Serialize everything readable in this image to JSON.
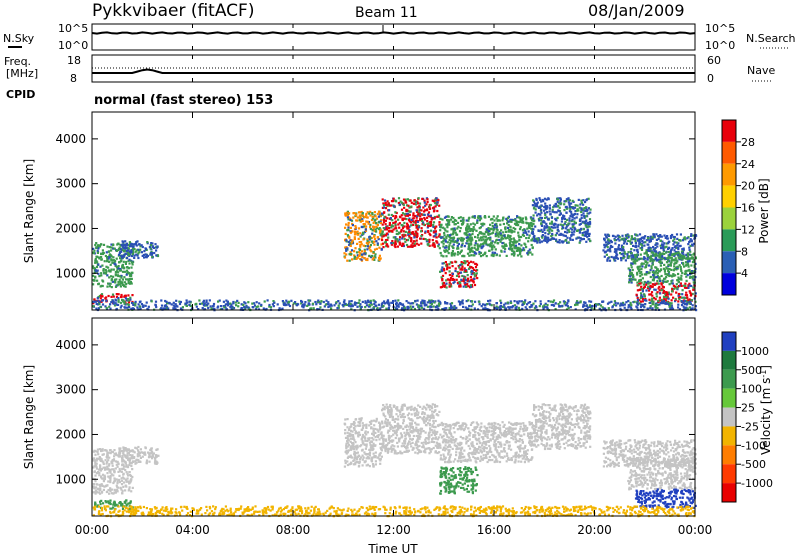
{
  "header": {
    "station": "Pykkvibaer (fitACF)",
    "beam": "Beam 11",
    "date": "08/Jan/2009"
  },
  "noise_panel": {
    "left_label": "N.Sky",
    "right_label": "N.Search",
    "left_ticks": [
      "10^5",
      "10^0"
    ],
    "right_ticks": [
      "10^5",
      "10^0"
    ]
  },
  "freq_panel": {
    "left_label_1": "Freq.",
    "left_label_2": "[MHz]",
    "left_ticks": [
      "18",
      "8"
    ],
    "right_label": "Nave",
    "right_ticks": [
      "60",
      "0"
    ],
    "cpid_label": "CPID",
    "cpid_text": "normal (fast stereo) 153"
  },
  "x_axis": {
    "label": "Time UT",
    "ticks": [
      "00:00",
      "04:00",
      "08:00",
      "12:00",
      "16:00",
      "20:00",
      "00:00"
    ]
  },
  "chart_data": [
    {
      "type": "heatmap",
      "title": "",
      "xlabel": "Time UT",
      "ylabel": "Slant Range [km]",
      "xlim": [
        0,
        24
      ],
      "ylim": [
        180,
        4600
      ],
      "y_ticks": [
        1000,
        2000,
        3000,
        4000
      ],
      "colorbar": {
        "label": "Power [dB]",
        "ticks": [
          "28",
          "24",
          "20",
          "16",
          "12",
          "8",
          "4"
        ],
        "colors": [
          "#e8000b",
          "#ff5a00",
          "#ff9a00",
          "#ffd000",
          "#9bd23c",
          "#2a9b58",
          "#2a5fb5",
          "#0000dd"
        ]
      }
    },
    {
      "type": "heatmap",
      "title": "",
      "xlabel": "Time UT",
      "ylabel": "Slant Range [km]",
      "xlim": [
        0,
        24
      ],
      "ylim": [
        180,
        4600
      ],
      "y_ticks": [
        1000,
        2000,
        3000,
        4000
      ],
      "colorbar": {
        "label": "Velocity [m s-1]",
        "ticks": [
          "1000",
          "500",
          "100",
          "25",
          "-25",
          "-100",
          "-500",
          "-1000"
        ],
        "colors": [
          "#2040c0",
          "#1e7a3e",
          "#3c9a4e",
          "#66c83a",
          "#c4c4c4",
          "#f2b400",
          "#ff7d00",
          "#ff3a00",
          "#e80000"
        ]
      }
    }
  ],
  "scatter_regions": [
    {
      "t0": 0.0,
      "t1": 1.6,
      "r0": 700,
      "r1": 1700,
      "p": "green",
      "v": "gray"
    },
    {
      "t0": 0.0,
      "t1": 1.6,
      "r0": 350,
      "r1": 560,
      "p": "red",
      "v": "green"
    },
    {
      "t0": 1.0,
      "t1": 2.6,
      "r0": 1350,
      "r1": 1750,
      "p": "blue",
      "v": "gray"
    },
    {
      "t0": 10.0,
      "t1": 11.5,
      "r0": 1300,
      "r1": 2400,
      "p": "orange",
      "v": "gray"
    },
    {
      "t0": 11.5,
      "t1": 13.8,
      "r0": 1600,
      "r1": 2700,
      "p": "red",
      "v": "gray"
    },
    {
      "t0": 13.8,
      "t1": 15.3,
      "r0": 700,
      "r1": 1300,
      "p": "red",
      "v": "green"
    },
    {
      "t0": 13.8,
      "t1": 17.5,
      "r0": 1400,
      "r1": 2300,
      "p": "green",
      "v": "gray"
    },
    {
      "t0": 17.5,
      "t1": 19.8,
      "r0": 1700,
      "r1": 2700,
      "p": "blue",
      "v": "gray"
    },
    {
      "t0": 20.3,
      "t1": 24.0,
      "r0": 1300,
      "r1": 1900,
      "p": "blue",
      "v": "gray"
    },
    {
      "t0": 21.3,
      "t1": 24.0,
      "r0": 800,
      "r1": 1500,
      "p": "green",
      "v": "gray"
    },
    {
      "t0": 21.6,
      "t1": 24.0,
      "r0": 380,
      "r1": 800,
      "p": "red",
      "v": "blue"
    },
    {
      "t0": 0.0,
      "t1": 24.0,
      "r0": 200,
      "r1": 420,
      "p": "blue",
      "v": "yellow"
    }
  ]
}
